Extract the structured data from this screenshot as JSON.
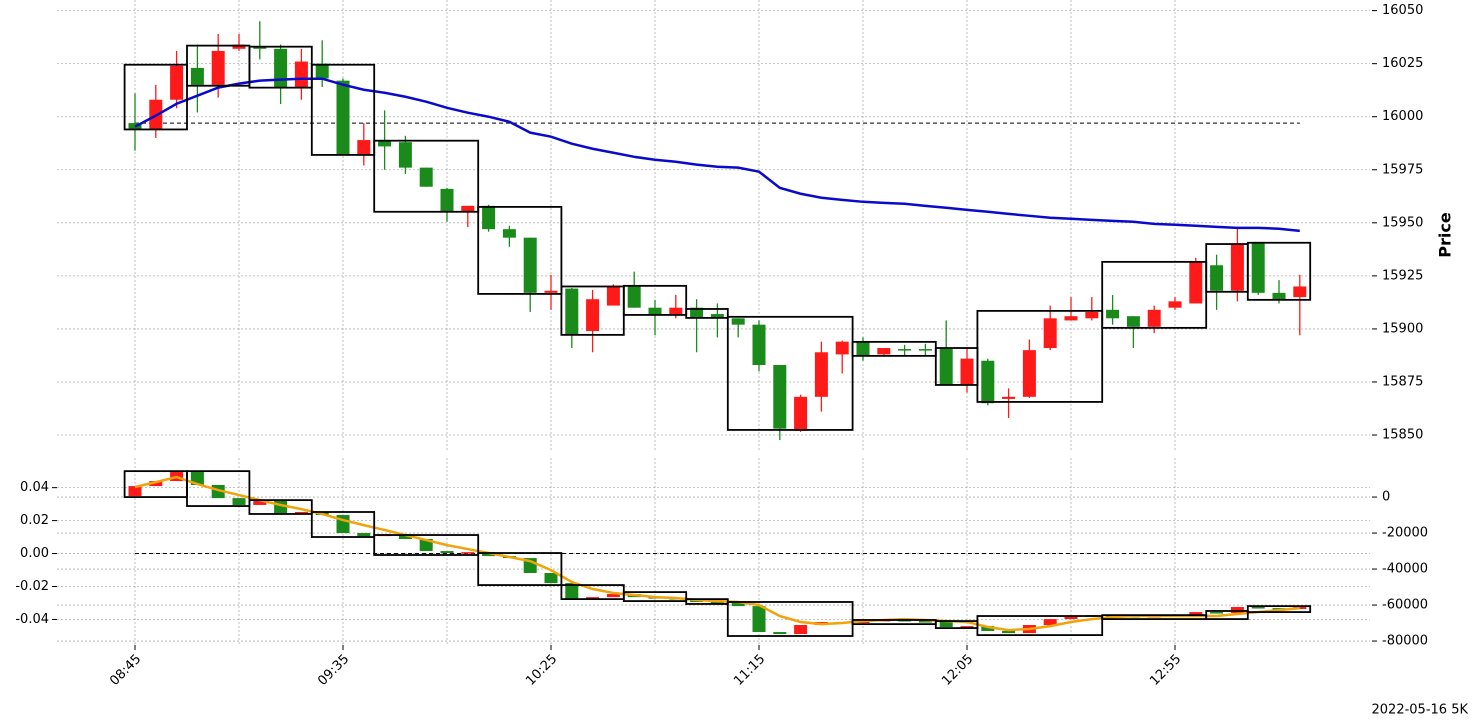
{
  "chart_data": [
    {
      "type": "candlestick",
      "y_label": "Price",
      "open": [
        15997,
        15994,
        16008,
        16023,
        16015,
        16032,
        16033,
        16032,
        16014,
        16025,
        16017,
        15982,
        15989,
        15988,
        15976,
        15966,
        15955,
        15958,
        15947,
        15943,
        15917,
        15919,
        15899,
        15911,
        15920,
        15910,
        15907,
        15910,
        15907,
        15905,
        15902,
        15883,
        15852,
        15868,
        15888,
        15894,
        15888,
        15890.5,
        15890.5,
        15891,
        15874,
        15885,
        15867,
        15868,
        15891,
        15904,
        15905,
        15909,
        15906,
        15901,
        15910,
        15912,
        15930,
        15918,
        15941,
        15917,
        15915
      ],
      "high": [
        16011,
        16015,
        16031,
        16034,
        16039,
        16039,
        16045,
        16034,
        16032,
        16036,
        16018,
        15997,
        16003,
        15991,
        15976,
        15966.5,
        15958,
        15958.5,
        15948.6,
        15943,
        15925.5,
        15919.3,
        15918.4,
        15921,
        15927,
        15913.7,
        15916,
        15914,
        15912,
        15905,
        15904,
        15883,
        15869,
        15894,
        15894.5,
        15896,
        15891,
        15892.5,
        15893,
        15904,
        15891,
        15886,
        15872,
        15895,
        15911,
        15915,
        15915,
        15916,
        15906,
        15911,
        15915,
        15933.5,
        15935,
        15948,
        15941,
        15923,
        15925.5
      ],
      "low": [
        15984,
        15990,
        16004,
        16002,
        16009,
        16031,
        16027,
        16006,
        16008,
        16014,
        15982,
        15977,
        15975,
        15973,
        15967,
        15950.5,
        15948,
        15945.8,
        15938.7,
        15908,
        15909,
        15891,
        15889,
        15911,
        15910,
        15897,
        15905,
        15889,
        15896,
        15896,
        15880,
        15847.6,
        15851.5,
        15861,
        15879,
        15885,
        15887.5,
        15887,
        15887,
        15874,
        15870,
        15864,
        15858,
        15867.5,
        15890,
        15904,
        15904,
        15902,
        15891,
        15898,
        15909,
        15912,
        15909,
        15913,
        15916,
        15912,
        15897
      ],
      "close": [
        15994,
        16008,
        16024,
        16015,
        16031,
        16034,
        16032,
        16014,
        16026,
        16018,
        15982,
        15989,
        15986,
        15976,
        15967,
        15955,
        15958,
        15947,
        15943,
        15917,
        15918,
        15897,
        15914,
        15920,
        15910,
        15907,
        15910,
        15905,
        15905,
        15902,
        15883,
        15853,
        15868,
        15889,
        15894,
        15887,
        15891,
        15890,
        15890,
        15874,
        15886,
        15865,
        15868,
        15890,
        15905,
        15906,
        15908,
        15905,
        15901,
        15909,
        15913,
        15932,
        15918,
        15940,
        15917,
        15914,
        15920
      ],
      "up_color": "#ff1a1a",
      "down_color": "#1a8a1a",
      "ma": {
        "color": "#0a0acc",
        "values": [
          15995.3,
          16000.5,
          16006.1,
          16009.9,
          16013.7,
          16015.6,
          16017,
          16017.5,
          16017.9,
          16017.9,
          16015.1,
          16012.7,
          16011.3,
          16009.4,
          16007.1,
          16004.2,
          16001.9,
          16000,
          15997.6,
          15992.5,
          15990.6,
          15987.3,
          15984.9,
          15983,
          15981.1,
          15979.7,
          15978.8,
          15977.4,
          15976.4,
          15976,
          15974.1,
          15966.5,
          15963.7,
          15961.8,
          15960.8,
          15959.9,
          15959.4,
          15959,
          15958,
          15957.1,
          15956.1,
          15955.2,
          15954.2,
          15953.3,
          15952.4,
          15951.9,
          15951.4,
          15950.9,
          15950.5,
          15949.5,
          15949.1,
          15948.6,
          15948.1,
          15947.6,
          15947.6,
          15947.2,
          15946.2
        ]
      },
      "hline": 15997,
      "boxes": [
        {
          "start": 0,
          "end": 2,
          "high": 16024.5,
          "low": 15994
        },
        {
          "start": 3,
          "end": 5,
          "high": 16033.5,
          "low": 16014.6
        },
        {
          "start": 6,
          "end": 8,
          "high": 16033,
          "low": 16013.7
        },
        {
          "start": 9,
          "end": 11,
          "high": 16024.5,
          "low": 15982
        },
        {
          "start": 12,
          "end": 16,
          "high": 15988.7,
          "low": 15955.2
        },
        {
          "start": 17,
          "end": 20,
          "high": 15957.5,
          "low": 15916.5
        },
        {
          "start": 21,
          "end": 23,
          "high": 15920,
          "low": 15897.2
        },
        {
          "start": 24,
          "end": 26,
          "high": 15920.3,
          "low": 15906.6
        },
        {
          "start": 27,
          "end": 28,
          "high": 15909.4,
          "low": 15905.2
        },
        {
          "start": 29,
          "end": 34,
          "high": 15905.7,
          "low": 15852.4
        },
        {
          "start": 35,
          "end": 38,
          "high": 15893.9,
          "low": 15887.3
        },
        {
          "start": 39,
          "end": 40,
          "high": 15891,
          "low": 15873.6
        },
        {
          "start": 41,
          "end": 46,
          "high": 15908.5,
          "low": 15865.6
        },
        {
          "start": 47,
          "end": 51,
          "high": 15931.6,
          "low": 15900.5
        },
        {
          "start": 52,
          "end": 53,
          "high": 15940,
          "low": 15917.5
        },
        {
          "start": 54,
          "end": 56,
          "high": 15940.6,
          "low": 15913.7
        }
      ],
      "ylim": [
        15842,
        16055
      ],
      "yticks": [
        15850,
        15875,
        15900,
        15925,
        15950,
        15975,
        16000,
        16025,
        16050
      ],
      "grid": true
    },
    {
      "type": "candlestick",
      "axis": "y2",
      "categories": [
        "08:45",
        null,
        null,
        null,
        null,
        null,
        null,
        null,
        null,
        null,
        "09:35",
        null,
        null,
        null,
        null,
        null,
        null,
        null,
        null,
        null,
        "10:25",
        null,
        null,
        null,
        null,
        null,
        null,
        null,
        null,
        null,
        "11:15",
        null,
        null,
        null,
        null,
        null,
        null,
        null,
        null,
        null,
        "12:05",
        null,
        null,
        null,
        null,
        null,
        null,
        null,
        null,
        null,
        "12:55",
        null,
        null,
        null,
        null,
        null,
        null
      ],
      "open": [
        600,
        6100,
        8900,
        13900,
        6700,
        -600,
        -4400,
        -1700,
        -9400,
        -8300,
        -10000,
        -20000,
        -21700,
        -20600,
        -23300,
        -30000,
        -31100,
        -30600,
        -32800,
        -33900,
        -42200,
        -47800,
        -56700,
        -55600,
        -53900,
        -55600,
        -56100,
        -56700,
        -58300,
        -58900,
        -60600,
        -75000,
        -76100,
        -71100,
        -69400,
        -70000,
        -68900,
        -68300,
        -68900,
        -69400,
        -72200,
        -71700,
        -74400,
        -75600,
        -71100,
        -67800,
        -66100,
        -65600,
        -66100,
        -66700,
        -66100,
        -65600,
        -63900,
        -64400,
        -61100,
        -61700,
        -62200
      ],
      "close": [
        6100,
        8900,
        13900,
        6700,
        -600,
        -4400,
        -1700,
        -9400,
        -8300,
        -10000,
        -20000,
        -21700,
        -20600,
        -23300,
        -30000,
        -31100,
        -30600,
        -32800,
        -33900,
        -42200,
        -47800,
        -56700,
        -55600,
        -53900,
        -55600,
        -56100,
        -56700,
        -58300,
        -58900,
        -60600,
        -75000,
        -76100,
        -71100,
        -69400,
        -70000,
        -68900,
        -68300,
        -68900,
        -69400,
        -72200,
        -71700,
        -74400,
        -75600,
        -71100,
        -67800,
        -66100,
        -65600,
        -66100,
        -66700,
        -66100,
        -65600,
        -63900,
        -64400,
        -61100,
        -61700,
        -62200,
        -61100
      ],
      "up_color": "#ff1a1a",
      "down_color": "#1a8a1a",
      "ma": {
        "color": "#f0a30a",
        "values": [
          5600,
          8300,
          11100,
          7200,
          3900,
          1100,
          -1700,
          -4400,
          -6700,
          -9400,
          -12800,
          -15600,
          -18300,
          -21100,
          -23900,
          -26700,
          -28900,
          -31100,
          -33300,
          -35600,
          -40600,
          -47200,
          -51100,
          -53300,
          -54400,
          -55600,
          -56100,
          -57200,
          -57800,
          -58300,
          -60000,
          -66100,
          -69400,
          -70600,
          -70000,
          -68900,
          -68300,
          -67800,
          -68300,
          -68900,
          -69400,
          -72200,
          -73900,
          -73300,
          -71700,
          -69400,
          -67800,
          -66700,
          -66100,
          -66100,
          -66100,
          -66100,
          -66100,
          -65000,
          -63900,
          -62800,
          -61700
        ]
      },
      "hline": 0,
      "boxes": [
        {
          "start": 0,
          "end": 2,
          "high": 14400,
          "low": 0
        },
        {
          "start": 3,
          "end": 5,
          "high": 14400,
          "low": -5000
        },
        {
          "start": 6,
          "end": 8,
          "high": -1700,
          "low": -9400
        },
        {
          "start": 9,
          "end": 11,
          "high": -8300,
          "low": -22200
        },
        {
          "start": 12,
          "end": 16,
          "high": -21100,
          "low": -32200
        },
        {
          "start": 17,
          "end": 20,
          "high": -31100,
          "low": -48900
        },
        {
          "start": 21,
          "end": 23,
          "high": -48900,
          "low": -56700
        },
        {
          "start": 24,
          "end": 26,
          "high": -52800,
          "low": -57800
        },
        {
          "start": 27,
          "end": 28,
          "high": -56700,
          "low": -59400
        },
        {
          "start": 29,
          "end": 34,
          "high": -58300,
          "low": -77200
        },
        {
          "start": 35,
          "end": 38,
          "high": -68300,
          "low": -70600
        },
        {
          "start": 39,
          "end": 40,
          "high": -68900,
          "low": -72800
        },
        {
          "start": 41,
          "end": 46,
          "high": -66100,
          "low": -76700
        },
        {
          "start": 47,
          "end": 51,
          "high": -65600,
          "low": -67800
        },
        {
          "start": 52,
          "end": 53,
          "high": -63300,
          "low": -67800
        },
        {
          "start": 54,
          "end": 56,
          "high": -60600,
          "low": -63900
        }
      ],
      "ylim": [
        -0.0555,
        0.058
      ],
      "yticks": [
        -0.04,
        -0.02,
        {
          "value": 0,
          "label": "0.00"
        },
        0.02,
        0.04
      ],
      "y2lim": [
        -82200,
        21700
      ],
      "y2ticks": [
        -80000,
        -60000,
        -40000,
        -20000,
        0
      ],
      "grid": true,
      "footer": "2022-05-16 5K"
    }
  ]
}
